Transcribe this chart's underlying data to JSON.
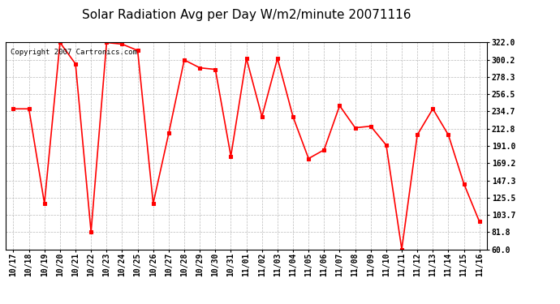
{
  "title": "Solar Radiation Avg per Day W/m2/minute 20071116",
  "copyright_text": "Copyright 2007 Cartronics.com",
  "labels": [
    "10/17",
    "10/18",
    "10/19",
    "10/20",
    "10/21",
    "10/22",
    "10/23",
    "10/24",
    "10/25",
    "10/26",
    "10/27",
    "10/28",
    "10/29",
    "10/30",
    "10/31",
    "11/01",
    "11/02",
    "11/03",
    "11/04",
    "11/05",
    "11/06",
    "11/07",
    "11/08",
    "11/09",
    "11/10",
    "11/11",
    "11/12",
    "11/13",
    "11/14",
    "11/15",
    "11/16"
  ],
  "values": [
    238,
    238,
    118,
    322,
    295,
    82,
    322,
    320,
    312,
    118,
    207,
    300,
    290,
    288,
    178,
    302,
    228,
    302,
    228,
    175,
    186,
    242,
    214,
    216,
    192,
    60,
    205,
    238,
    205,
    143,
    95
  ],
  "line_color": "#FF0000",
  "marker_color": "#FF0000",
  "bg_color": "#FFFFFF",
  "plot_bg_color": "#FFFFFF",
  "grid_color": "#BBBBBB",
  "ylim_min": 60.0,
  "ylim_max": 322.0,
  "ytick_labels": [
    "322.0",
    "300.2",
    "278.3",
    "256.5",
    "234.7",
    "212.8",
    "191.0",
    "169.2",
    "147.3",
    "125.5",
    "103.7",
    "81.8",
    "60.0"
  ],
  "ytick_values": [
    322.0,
    300.2,
    278.3,
    256.5,
    234.7,
    212.8,
    191.0,
    169.2,
    147.3,
    125.5,
    103.7,
    81.8,
    60.0
  ],
  "title_fontsize": 11,
  "tick_fontsize": 7,
  "copyright_fontsize": 6.5
}
